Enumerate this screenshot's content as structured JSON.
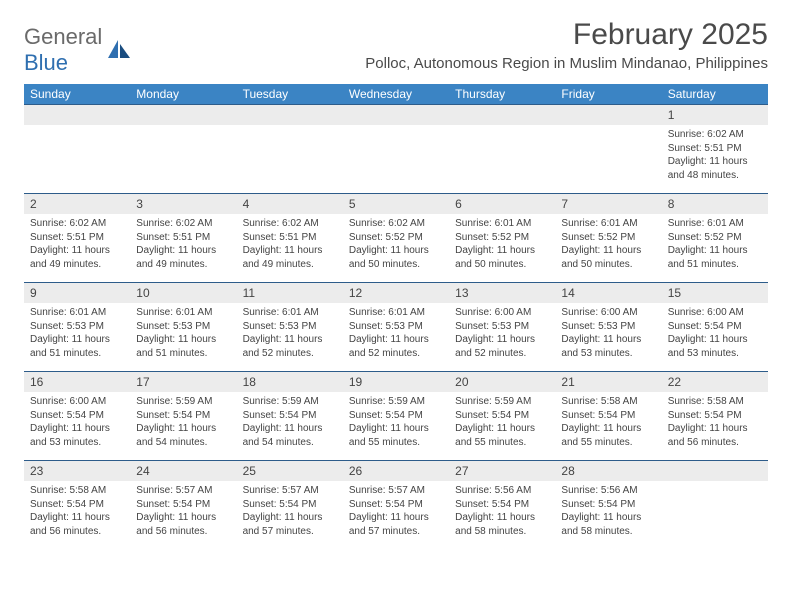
{
  "logo": {
    "text1": "General",
    "text2": "Blue"
  },
  "header": {
    "month_title": "February 2025",
    "location": "Polloc, Autonomous Region in Muslim Mindanao, Philippines"
  },
  "colors": {
    "header_bg": "#3b84c4",
    "header_text": "#ffffff",
    "row_border": "#2d5c8a",
    "daynum_bg": "#ececec",
    "text": "#444444",
    "logo_gray": "#6a6a6a",
    "logo_blue": "#2f6fb0"
  },
  "weekdays": [
    "Sunday",
    "Monday",
    "Tuesday",
    "Wednesday",
    "Thursday",
    "Friday",
    "Saturday"
  ],
  "weeks": [
    [
      {
        "empty": true
      },
      {
        "empty": true
      },
      {
        "empty": true
      },
      {
        "empty": true
      },
      {
        "empty": true
      },
      {
        "empty": true
      },
      {
        "num": "1",
        "sunrise": "Sunrise: 6:02 AM",
        "sunset": "Sunset: 5:51 PM",
        "daylight1": "Daylight: 11 hours",
        "daylight2": "and 48 minutes."
      }
    ],
    [
      {
        "num": "2",
        "sunrise": "Sunrise: 6:02 AM",
        "sunset": "Sunset: 5:51 PM",
        "daylight1": "Daylight: 11 hours",
        "daylight2": "and 49 minutes."
      },
      {
        "num": "3",
        "sunrise": "Sunrise: 6:02 AM",
        "sunset": "Sunset: 5:51 PM",
        "daylight1": "Daylight: 11 hours",
        "daylight2": "and 49 minutes."
      },
      {
        "num": "4",
        "sunrise": "Sunrise: 6:02 AM",
        "sunset": "Sunset: 5:51 PM",
        "daylight1": "Daylight: 11 hours",
        "daylight2": "and 49 minutes."
      },
      {
        "num": "5",
        "sunrise": "Sunrise: 6:02 AM",
        "sunset": "Sunset: 5:52 PM",
        "daylight1": "Daylight: 11 hours",
        "daylight2": "and 50 minutes."
      },
      {
        "num": "6",
        "sunrise": "Sunrise: 6:01 AM",
        "sunset": "Sunset: 5:52 PM",
        "daylight1": "Daylight: 11 hours",
        "daylight2": "and 50 minutes."
      },
      {
        "num": "7",
        "sunrise": "Sunrise: 6:01 AM",
        "sunset": "Sunset: 5:52 PM",
        "daylight1": "Daylight: 11 hours",
        "daylight2": "and 50 minutes."
      },
      {
        "num": "8",
        "sunrise": "Sunrise: 6:01 AM",
        "sunset": "Sunset: 5:52 PM",
        "daylight1": "Daylight: 11 hours",
        "daylight2": "and 51 minutes."
      }
    ],
    [
      {
        "num": "9",
        "sunrise": "Sunrise: 6:01 AM",
        "sunset": "Sunset: 5:53 PM",
        "daylight1": "Daylight: 11 hours",
        "daylight2": "and 51 minutes."
      },
      {
        "num": "10",
        "sunrise": "Sunrise: 6:01 AM",
        "sunset": "Sunset: 5:53 PM",
        "daylight1": "Daylight: 11 hours",
        "daylight2": "and 51 minutes."
      },
      {
        "num": "11",
        "sunrise": "Sunrise: 6:01 AM",
        "sunset": "Sunset: 5:53 PM",
        "daylight1": "Daylight: 11 hours",
        "daylight2": "and 52 minutes."
      },
      {
        "num": "12",
        "sunrise": "Sunrise: 6:01 AM",
        "sunset": "Sunset: 5:53 PM",
        "daylight1": "Daylight: 11 hours",
        "daylight2": "and 52 minutes."
      },
      {
        "num": "13",
        "sunrise": "Sunrise: 6:00 AM",
        "sunset": "Sunset: 5:53 PM",
        "daylight1": "Daylight: 11 hours",
        "daylight2": "and 52 minutes."
      },
      {
        "num": "14",
        "sunrise": "Sunrise: 6:00 AM",
        "sunset": "Sunset: 5:53 PM",
        "daylight1": "Daylight: 11 hours",
        "daylight2": "and 53 minutes."
      },
      {
        "num": "15",
        "sunrise": "Sunrise: 6:00 AM",
        "sunset": "Sunset: 5:54 PM",
        "daylight1": "Daylight: 11 hours",
        "daylight2": "and 53 minutes."
      }
    ],
    [
      {
        "num": "16",
        "sunrise": "Sunrise: 6:00 AM",
        "sunset": "Sunset: 5:54 PM",
        "daylight1": "Daylight: 11 hours",
        "daylight2": "and 53 minutes."
      },
      {
        "num": "17",
        "sunrise": "Sunrise: 5:59 AM",
        "sunset": "Sunset: 5:54 PM",
        "daylight1": "Daylight: 11 hours",
        "daylight2": "and 54 minutes."
      },
      {
        "num": "18",
        "sunrise": "Sunrise: 5:59 AM",
        "sunset": "Sunset: 5:54 PM",
        "daylight1": "Daylight: 11 hours",
        "daylight2": "and 54 minutes."
      },
      {
        "num": "19",
        "sunrise": "Sunrise: 5:59 AM",
        "sunset": "Sunset: 5:54 PM",
        "daylight1": "Daylight: 11 hours",
        "daylight2": "and 55 minutes."
      },
      {
        "num": "20",
        "sunrise": "Sunrise: 5:59 AM",
        "sunset": "Sunset: 5:54 PM",
        "daylight1": "Daylight: 11 hours",
        "daylight2": "and 55 minutes."
      },
      {
        "num": "21",
        "sunrise": "Sunrise: 5:58 AM",
        "sunset": "Sunset: 5:54 PM",
        "daylight1": "Daylight: 11 hours",
        "daylight2": "and 55 minutes."
      },
      {
        "num": "22",
        "sunrise": "Sunrise: 5:58 AM",
        "sunset": "Sunset: 5:54 PM",
        "daylight1": "Daylight: 11 hours",
        "daylight2": "and 56 minutes."
      }
    ],
    [
      {
        "num": "23",
        "sunrise": "Sunrise: 5:58 AM",
        "sunset": "Sunset: 5:54 PM",
        "daylight1": "Daylight: 11 hours",
        "daylight2": "and 56 minutes."
      },
      {
        "num": "24",
        "sunrise": "Sunrise: 5:57 AM",
        "sunset": "Sunset: 5:54 PM",
        "daylight1": "Daylight: 11 hours",
        "daylight2": "and 56 minutes."
      },
      {
        "num": "25",
        "sunrise": "Sunrise: 5:57 AM",
        "sunset": "Sunset: 5:54 PM",
        "daylight1": "Daylight: 11 hours",
        "daylight2": "and 57 minutes."
      },
      {
        "num": "26",
        "sunrise": "Sunrise: 5:57 AM",
        "sunset": "Sunset: 5:54 PM",
        "daylight1": "Daylight: 11 hours",
        "daylight2": "and 57 minutes."
      },
      {
        "num": "27",
        "sunrise": "Sunrise: 5:56 AM",
        "sunset": "Sunset: 5:54 PM",
        "daylight1": "Daylight: 11 hours",
        "daylight2": "and 58 minutes."
      },
      {
        "num": "28",
        "sunrise": "Sunrise: 5:56 AM",
        "sunset": "Sunset: 5:54 PM",
        "daylight1": "Daylight: 11 hours",
        "daylight2": "and 58 minutes."
      },
      {
        "empty": true
      }
    ]
  ]
}
